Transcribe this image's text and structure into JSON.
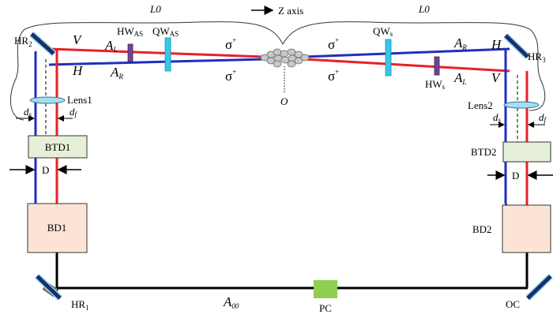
{
  "top": {
    "l0_left": "L0",
    "l0_right": "L0",
    "z_axis": "Z axis"
  },
  "left_arm": {
    "hr2": {
      "text": "HR",
      "sub": "2"
    },
    "v": "V",
    "h": "H",
    "a_l": {
      "text": "A",
      "sub": "L"
    },
    "a_r": {
      "text": "A",
      "sub": "R"
    },
    "hw": {
      "text": "HW",
      "sub": "AS"
    },
    "qw": {
      "text": "QW",
      "sub": "AS"
    },
    "sigma_upper": {
      "text": "σ",
      "sup": "+"
    },
    "sigma_lower": {
      "text": "σ",
      "sup": "+"
    },
    "lens": "Lens1",
    "ds": {
      "text": "d",
      "sub": "s"
    },
    "df": {
      "text": "d",
      "sub": "f"
    },
    "btd": "BTD1",
    "d": "D",
    "bd": "BD1",
    "hr1": {
      "text": "HR",
      "sub": "1"
    }
  },
  "right_arm": {
    "hr3": {
      "text": "HR",
      "sub": "3"
    },
    "h": "H",
    "v": "V",
    "a_r": {
      "text": "A",
      "sub": "R"
    },
    "a_l": {
      "text": "A",
      "sub": "L"
    },
    "qw": {
      "text": "QW",
      "sub": "s"
    },
    "hw": {
      "text": "HW",
      "sub": "s"
    },
    "sigma_upper": {
      "text": "σ",
      "sup": "+"
    },
    "sigma_lower": {
      "text": "σ",
      "sup": "+"
    },
    "lens": "Lens2",
    "ds": {
      "text": "d",
      "sub": "s"
    },
    "df": {
      "text": "d",
      "sub": "f"
    },
    "btd": "BTD2",
    "d": "D",
    "bd": "BD2"
  },
  "center": {
    "origin": "O"
  },
  "bottom": {
    "a00": {
      "text": "A",
      "sub": "00"
    },
    "pc": "PC",
    "oc": "OC"
  }
}
